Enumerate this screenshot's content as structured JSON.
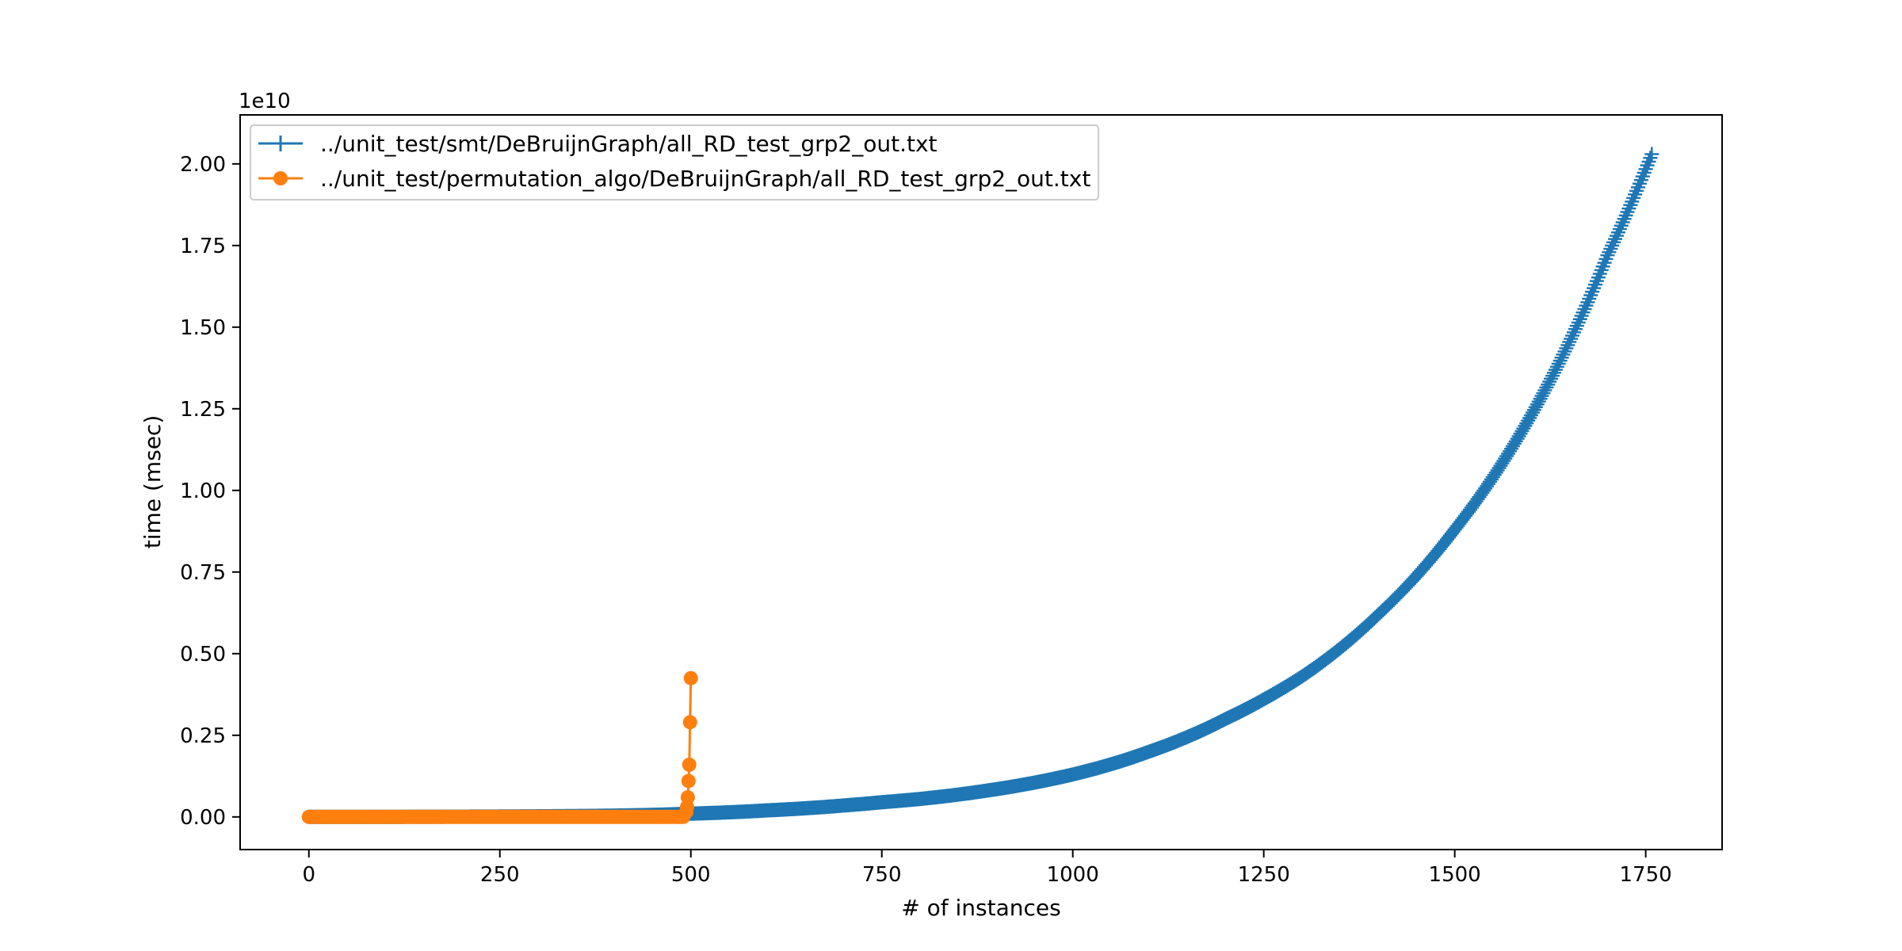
{
  "chart_data": {
    "type": "line",
    "title": "",
    "xlabel": "# of instances",
    "ylabel": "time (msec)",
    "y_offset_text": "1e10",
    "xlim": [
      -90,
      1850
    ],
    "ylim": [
      -0.1,
      2.15
    ],
    "y_scale_factor": 10000000000.0,
    "grid": false,
    "legend_placement": "upper-left",
    "x_ticks": [
      0,
      250,
      500,
      750,
      1000,
      1250,
      1500,
      1750
    ],
    "x_tick_labels": [
      "0",
      "250",
      "500",
      "750",
      "1000",
      "1250",
      "1500",
      "1750"
    ],
    "y_ticks": [
      0.0,
      0.25,
      0.5,
      0.75,
      1.0,
      1.25,
      1.5,
      1.75,
      2.0
    ],
    "y_tick_labels": [
      "0.00",
      "0.25",
      "0.50",
      "0.75",
      "1.00",
      "1.25",
      "1.50",
      "1.75",
      "2.00"
    ],
    "series": [
      {
        "name": "../unit_test/smt/DeBruijnGraph/all_RD_test_grp2_out.txt",
        "color": "#1f77b4",
        "marker": "plus",
        "x": [
          0,
          100,
          200,
          300,
          400,
          500,
          600,
          700,
          750,
          800,
          900,
          1000,
          1100,
          1200,
          1250,
          1300,
          1400,
          1500,
          1600,
          1700,
          1758
        ],
        "y": [
          0.0,
          0.0002,
          0.0008,
          0.0018,
          0.004,
          0.01,
          0.02,
          0.035,
          0.045,
          0.055,
          0.085,
          0.13,
          0.2,
          0.3,
          0.36,
          0.43,
          0.62,
          0.88,
          1.23,
          1.72,
          2.03
        ]
      },
      {
        "name": "../unit_test/permutation_algo/DeBruijnGraph/all_RD_test_grp2_out.txt",
        "color": "#ff7f0e",
        "marker": "circle",
        "x": [
          0,
          100,
          200,
          300,
          400,
          480,
          490,
          494,
          495,
          496,
          497,
          498,
          499,
          500
        ],
        "y": [
          0.0,
          0.0,
          0.0,
          0.0,
          0.0,
          0.0,
          0.0,
          0.015,
          0.03,
          0.06,
          0.11,
          0.16,
          0.29,
          0.425
        ]
      }
    ]
  }
}
